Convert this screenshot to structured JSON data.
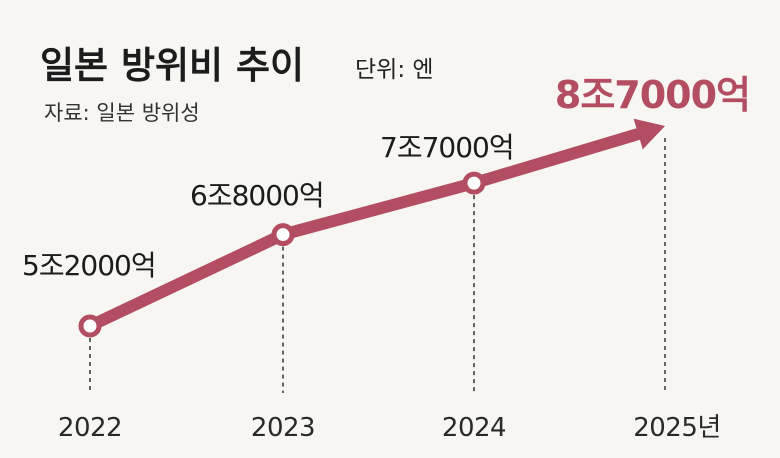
{
  "title": "일본 방위비 추이",
  "unit": "단위: 엔",
  "source": "자료: 일본 방위성",
  "colors": {
    "series": "#b24d62",
    "marker_fill": "#ffffff",
    "text": "#1c1c1c",
    "background": "#f7f6f2"
  },
  "chart_data": {
    "type": "line",
    "x": [
      "2022",
      "2023",
      "2024",
      "2025년"
    ],
    "values": [
      52000,
      68000,
      77000,
      87000
    ],
    "value_unit": "억 엔",
    "data_labels": [
      "5조2000억",
      "6조8000억",
      "7조7000억",
      "8조7000억"
    ],
    "highlight_last": true,
    "last_point_marker": "arrow",
    "grid": false,
    "legend": "none"
  }
}
